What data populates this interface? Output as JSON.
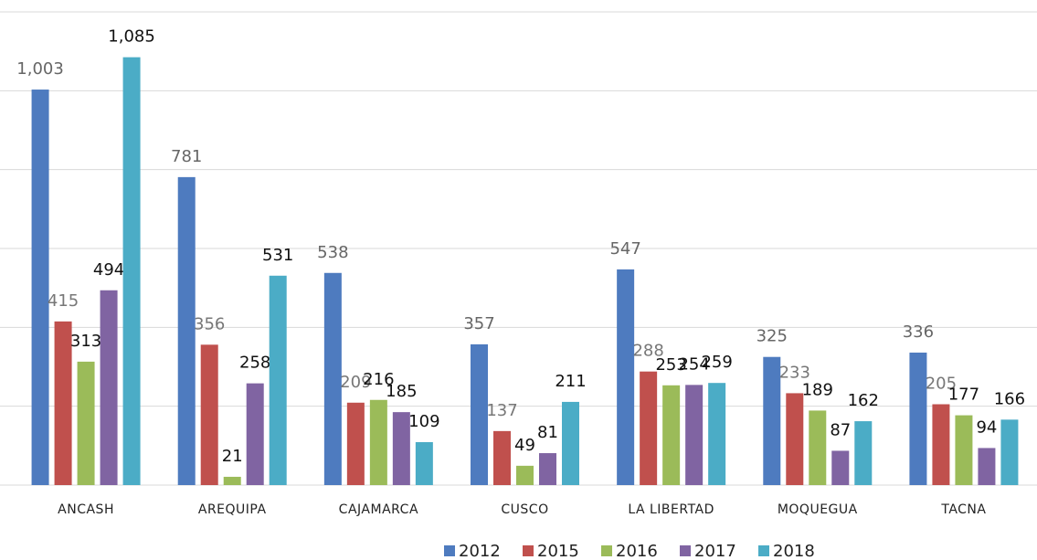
{
  "chart_data": {
    "type": "bar",
    "categories": [
      "ANCASH",
      "AREQUIPA",
      "CAJAMARCA",
      "CUSCO",
      "LA LIBERTAD",
      "MOQUEGUA",
      "TACNA"
    ],
    "series": [
      {
        "name": "2012",
        "color": "#4e7bbf",
        "values": [
          1003,
          781,
          538,
          357,
          547,
          325,
          336
        ],
        "value_labels": [
          "1,003",
          "781",
          "538",
          "357",
          "547",
          "325",
          "336"
        ]
      },
      {
        "name": "2015",
        "color": "#c0504d",
        "values": [
          415,
          356,
          209,
          137,
          288,
          233,
          205
        ],
        "value_labels": [
          "415",
          "356",
          "209",
          "137",
          "288",
          "233",
          "205"
        ]
      },
      {
        "name": "2016",
        "color": "#9bbb59",
        "values": [
          313,
          21,
          216,
          49,
          253,
          189,
          177
        ],
        "value_labels": [
          "313",
          "21",
          "216",
          "49",
          "253",
          "189",
          "177"
        ]
      },
      {
        "name": "2017",
        "color": "#8064a2",
        "values": [
          494,
          258,
          185,
          81,
          254,
          87,
          94
        ],
        "value_labels": [
          "494",
          "258",
          "185",
          "81",
          "254",
          "87",
          "94"
        ]
      },
      {
        "name": "2018",
        "color": "#4bacc6",
        "values": [
          1085,
          531,
          109,
          211,
          259,
          162,
          166
        ],
        "value_labels": [
          "1,085",
          "531",
          "109",
          "211",
          "259",
          "162",
          "166"
        ]
      }
    ],
    "ylim": [
      0,
      1200
    ],
    "yticks": [
      0,
      200,
      400,
      600,
      800,
      1000,
      1200
    ],
    "grid": true,
    "legend": "bottom"
  }
}
